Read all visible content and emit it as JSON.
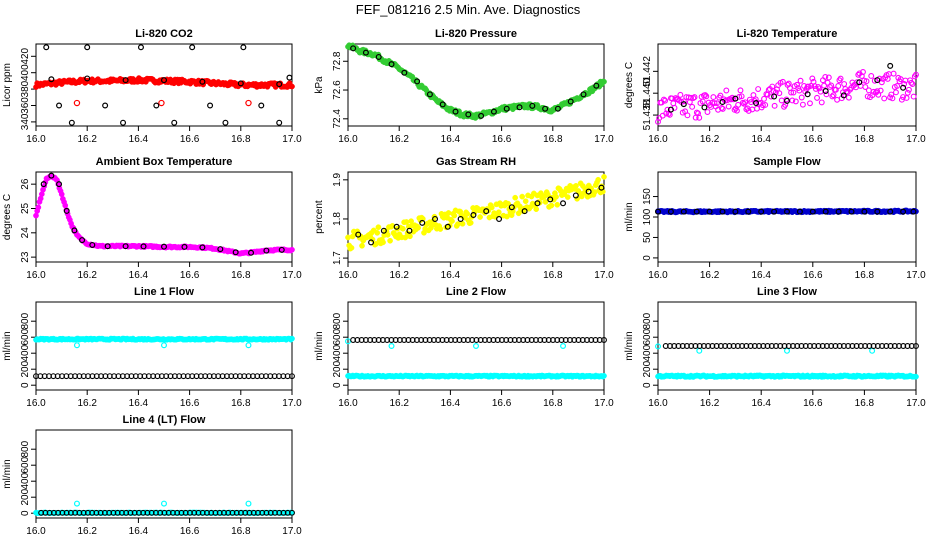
{
  "page_title": "FEF_081216  2.5 Min. Ave. Diagnostics",
  "chart_data": [
    {
      "type": "scatter",
      "title": "Li-820 CO2",
      "ylabel": "Licor ppm",
      "xlim": [
        16.0,
        17.0
      ],
      "ylim": [
        335,
        435
      ],
      "xticks": [
        16.0,
        16.2,
        16.4,
        16.6,
        16.8,
        17.0
      ],
      "yticks": [
        340,
        360,
        380,
        400,
        420
      ],
      "series": [
        {
          "name": "raw",
          "color": "#ff0000",
          "kind": "band",
          "x": [
            16.0,
            16.1,
            16.2,
            16.3,
            16.4,
            16.5,
            16.6,
            16.7,
            16.8,
            16.9,
            17.0
          ],
          "y": [
            385,
            388,
            390,
            390,
            391,
            390,
            389,
            387,
            385,
            385,
            385
          ],
          "noise": 2.5
        },
        {
          "name": "outliers",
          "color": "#ff0000",
          "kind": "points",
          "x": [
            16.16,
            16.49,
            16.83
          ],
          "y": [
            363,
            363,
            363
          ]
        },
        {
          "name": "avg",
          "color": "#000000",
          "kind": "open-points",
          "x": [
            16.06,
            16.2,
            16.35,
            16.5,
            16.65,
            16.8,
            16.95
          ],
          "y": [
            392,
            393,
            391,
            391,
            389,
            387,
            386
          ]
        },
        {
          "name": "avg-scatter",
          "color": "#000000",
          "kind": "open-points",
          "x": [
            16.04,
            16.09,
            16.14,
            16.2,
            16.27,
            16.34,
            16.41,
            16.47,
            16.54,
            16.61,
            16.68,
            16.74,
            16.81,
            16.88,
            16.95,
            16.99
          ],
          "y": [
            431,
            360,
            339,
            431,
            360,
            339,
            431,
            360,
            339,
            431,
            360,
            339,
            431,
            360,
            339,
            394
          ]
        }
      ]
    },
    {
      "type": "scatter",
      "title": "Li-820 Pressure",
      "ylabel": "kPa",
      "xlim": [
        16.0,
        17.0
      ],
      "ylim": [
        72.35,
        72.92
      ],
      "xticks": [
        16.0,
        16.2,
        16.4,
        16.6,
        16.8,
        17.0
      ],
      "yticks": [
        72.4,
        72.6,
        72.8
      ],
      "series": [
        {
          "name": "raw",
          "color": "#33cc33",
          "kind": "band",
          "x": [
            16.0,
            16.05,
            16.1,
            16.15,
            16.2,
            16.25,
            16.3,
            16.35,
            16.4,
            16.45,
            16.5,
            16.55,
            16.6,
            16.65,
            16.7,
            16.75,
            16.8,
            16.85,
            16.9,
            16.95,
            17.0
          ],
          "y": [
            72.91,
            72.87,
            72.85,
            72.8,
            72.75,
            72.68,
            72.6,
            72.52,
            72.46,
            72.43,
            72.42,
            72.44,
            72.47,
            72.48,
            72.49,
            72.48,
            72.46,
            72.5,
            72.55,
            72.6,
            72.66
          ],
          "noise": 0.015
        },
        {
          "name": "avg",
          "color": "#000000",
          "kind": "open-points",
          "x": [
            16.02,
            16.07,
            16.12,
            16.17,
            16.22,
            16.27,
            16.32,
            16.37,
            16.42,
            16.47,
            16.52,
            16.57,
            16.62,
            16.67,
            16.72,
            16.77,
            16.82,
            16.87,
            16.92,
            16.97
          ],
          "y": [
            72.89,
            72.86,
            72.83,
            72.78,
            72.72,
            72.66,
            72.57,
            72.5,
            72.45,
            72.43,
            72.42,
            72.45,
            72.47,
            72.48,
            72.49,
            72.47,
            72.47,
            72.52,
            72.57,
            72.63
          ]
        }
      ]
    },
    {
      "type": "scatter",
      "title": "Li-820 Temperature",
      "ylabel": "degrees C",
      "xlim": [
        16.0,
        17.0
      ],
      "ylim": [
        51.437,
        51.4445
      ],
      "xticks": [
        16.0,
        16.2,
        16.4,
        16.6,
        16.8,
        17.0
      ],
      "yticks": [
        51.438,
        51.44,
        51.442
      ],
      "series": [
        {
          "name": "raw",
          "color": "#ff00ff",
          "kind": "open-band",
          "x": [
            16.0,
            16.2,
            16.4,
            16.6,
            16.8,
            17.0
          ],
          "y": [
            51.4385,
            51.439,
            51.4396,
            51.4402,
            51.4408,
            51.4405
          ],
          "noise": 0.0012
        },
        {
          "name": "avg",
          "color": "#000000",
          "kind": "open-points",
          "x": [
            16.05,
            16.1,
            16.18,
            16.25,
            16.3,
            16.38,
            16.45,
            16.5,
            16.58,
            16.65,
            16.72,
            16.78,
            16.85,
            16.9,
            16.95
          ],
          "y": [
            51.4385,
            51.439,
            51.4387,
            51.4392,
            51.4395,
            51.4391,
            51.4397,
            51.4393,
            51.4399,
            51.4402,
            51.4398,
            51.441,
            51.4412,
            51.4425,
            51.4405
          ]
        }
      ]
    },
    {
      "type": "scatter",
      "title": "Ambient Box Temperature",
      "ylabel": "degrees C",
      "xlim": [
        16.0,
        17.0
      ],
      "ylim": [
        22.8,
        26.5
      ],
      "xticks": [
        16.0,
        16.2,
        16.4,
        16.6,
        16.8,
        17.0
      ],
      "yticks": [
        23.0,
        24.0,
        25.0,
        26.0
      ],
      "series": [
        {
          "name": "raw",
          "color": "#ff00ff",
          "kind": "band",
          "x": [
            16.0,
            16.02,
            16.04,
            16.06,
            16.08,
            16.1,
            16.12,
            16.14,
            16.16,
            16.18,
            16.2,
            16.25,
            16.3,
            16.4,
            16.5,
            16.6,
            16.65,
            16.7,
            16.75,
            16.8,
            16.85,
            16.9,
            16.95,
            17.0
          ],
          "y": [
            24.7,
            25.5,
            26.2,
            26.35,
            26.2,
            25.6,
            24.9,
            24.3,
            23.9,
            23.7,
            23.55,
            23.45,
            23.45,
            23.45,
            23.42,
            23.42,
            23.4,
            23.35,
            23.25,
            23.15,
            23.2,
            23.28,
            23.3,
            23.3
          ],
          "noise": 0.03
        },
        {
          "name": "avg",
          "color": "#000000",
          "kind": "open-points",
          "x": [
            16.03,
            16.06,
            16.09,
            16.12,
            16.15,
            16.18,
            16.22,
            16.28,
            16.35,
            16.42,
            16.5,
            16.58,
            16.65,
            16.72,
            16.78,
            16.84,
            16.9,
            16.96
          ],
          "y": [
            26.0,
            26.35,
            26.0,
            24.9,
            24.1,
            23.7,
            23.5,
            23.45,
            23.45,
            23.44,
            23.43,
            23.42,
            23.4,
            23.33,
            23.2,
            23.18,
            23.27,
            23.3
          ]
        }
      ]
    },
    {
      "type": "scatter",
      "title": "Gas Stream RH",
      "ylabel": "percent",
      "xlim": [
        16.0,
        17.0
      ],
      "ylim": [
        1.69,
        1.92
      ],
      "xticks": [
        16.0,
        16.2,
        16.4,
        16.6,
        16.8,
        17.0
      ],
      "yticks": [
        1.7,
        1.8,
        1.9
      ],
      "series": [
        {
          "name": "raw",
          "color": "#ffff00",
          "kind": "band",
          "x": [
            16.0,
            16.1,
            16.2,
            16.3,
            16.4,
            16.5,
            16.6,
            16.7,
            16.8,
            16.9,
            17.0
          ],
          "y": [
            1.745,
            1.755,
            1.77,
            1.785,
            1.8,
            1.81,
            1.825,
            1.84,
            1.855,
            1.87,
            1.89
          ],
          "noise": 0.022
        },
        {
          "name": "avg",
          "color": "#000000",
          "kind": "open-points",
          "x": [
            16.04,
            16.09,
            16.14,
            16.19,
            16.24,
            16.29,
            16.34,
            16.39,
            16.44,
            16.49,
            16.54,
            16.59,
            16.64,
            16.69,
            16.74,
            16.79,
            16.84,
            16.89,
            16.94,
            16.99
          ],
          "y": [
            1.76,
            1.74,
            1.77,
            1.78,
            1.77,
            1.79,
            1.8,
            1.78,
            1.8,
            1.81,
            1.82,
            1.8,
            1.83,
            1.82,
            1.84,
            1.85,
            1.84,
            1.86,
            1.87,
            1.88
          ]
        }
      ]
    },
    {
      "type": "scatter",
      "title": "Sample Flow",
      "ylabel": "ml/min",
      "xlim": [
        16.0,
        17.0
      ],
      "ylim": [
        -10,
        210
      ],
      "xticks": [
        16.0,
        16.2,
        16.4,
        16.6,
        16.8,
        17.0
      ],
      "yticks": [
        0,
        50,
        100,
        150
      ],
      "series": [
        {
          "name": "raw",
          "color": "#0000cc",
          "kind": "band",
          "x": [
            16.0,
            17.0
          ],
          "y": [
            113,
            114
          ],
          "noise": 2
        },
        {
          "name": "avg",
          "color": "#000000",
          "kind": "open-points",
          "x": [
            16.0,
            16.05,
            16.1,
            16.15,
            16.2,
            16.25,
            16.3,
            16.35,
            16.4,
            16.45,
            16.5,
            16.55,
            16.6,
            16.65,
            16.7,
            16.75,
            16.8,
            16.85,
            16.9,
            16.95,
            16.99
          ],
          "y": [
            113,
            113,
            113,
            113,
            113,
            113,
            113,
            113,
            113,
            113,
            113,
            113,
            113,
            113,
            113,
            113,
            113,
            113,
            113,
            113,
            113
          ]
        }
      ]
    },
    {
      "type": "scatter",
      "title": "Line 1 Flow",
      "ylabel": "ml/min",
      "xlim": [
        16.0,
        17.0
      ],
      "ylim": [
        -60,
        1040
      ],
      "xticks": [
        16.0,
        16.2,
        16.4,
        16.6,
        16.8,
        17.0
      ],
      "yticks": [
        0,
        200,
        400,
        600,
        800
      ],
      "series": [
        {
          "name": "cyan-high",
          "color": "#00ffff",
          "kind": "band",
          "x": [
            16.0,
            17.0
          ],
          "y": [
            575,
            575
          ],
          "noise": 8
        },
        {
          "name": "cyan-dips",
          "color": "#00ffff",
          "kind": "open-points",
          "x": [
            16.16,
            16.5,
            16.83
          ],
          "y": [
            500,
            500,
            500
          ]
        },
        {
          "name": "black-low",
          "color": "#000000",
          "kind": "dense-open",
          "x": [
            16.0,
            17.0
          ],
          "y": [
            113,
            113
          ]
        }
      ]
    },
    {
      "type": "scatter",
      "title": "Line 2 Flow",
      "ylabel": "ml/min",
      "xlim": [
        16.0,
        17.0
      ],
      "ylim": [
        -60,
        1040
      ],
      "xticks": [
        16.0,
        16.2,
        16.4,
        16.6,
        16.8,
        17.0
      ],
      "yticks": [
        0,
        200,
        400,
        600,
        800
      ],
      "series": [
        {
          "name": "cyan-low",
          "color": "#00ffff",
          "kind": "band",
          "x": [
            16.0,
            17.0
          ],
          "y": [
            113,
            113
          ],
          "noise": 8
        },
        {
          "name": "cyan-dips",
          "color": "#00ffff",
          "kind": "open-points",
          "x": [
            16.0,
            16.17,
            16.5,
            16.84
          ],
          "y": [
            550,
            490,
            490,
            490
          ]
        },
        {
          "name": "black-high",
          "color": "#000000",
          "kind": "dense-open",
          "x": [
            16.02,
            17.0
          ],
          "y": [
            565,
            565
          ]
        }
      ]
    },
    {
      "type": "scatter",
      "title": "Line 3 Flow",
      "ylabel": "ml/min",
      "xlim": [
        16.0,
        17.0
      ],
      "ylim": [
        -60,
        1040
      ],
      "xticks": [
        16.0,
        16.2,
        16.4,
        16.6,
        16.8,
        17.0
      ],
      "yticks": [
        0,
        200,
        400,
        600,
        800
      ],
      "series": [
        {
          "name": "cyan-low",
          "color": "#00ffff",
          "kind": "band",
          "x": [
            16.0,
            17.0
          ],
          "y": [
            113,
            113
          ],
          "noise": 10
        },
        {
          "name": "cyan-dips",
          "color": "#00ffff",
          "kind": "open-points",
          "x": [
            16.0,
            16.16,
            16.5,
            16.83
          ],
          "y": [
            485,
            430,
            430,
            430
          ]
        },
        {
          "name": "black-high",
          "color": "#000000",
          "kind": "dense-open",
          "x": [
            16.03,
            17.0
          ],
          "y": [
            490,
            490
          ]
        }
      ]
    },
    {
      "type": "scatter",
      "title": "Line 4 (LT) Flow",
      "ylabel": "ml/min",
      "xlim": [
        16.0,
        17.0
      ],
      "ylim": [
        -60,
        1040
      ],
      "xticks": [
        16.0,
        16.2,
        16.4,
        16.6,
        16.8,
        17.0
      ],
      "yticks": [
        0,
        200,
        400,
        600,
        800
      ],
      "series": [
        {
          "name": "cyan-low",
          "color": "#00ffff",
          "kind": "band",
          "x": [
            16.0,
            17.0
          ],
          "y": [
            5,
            5
          ],
          "noise": 4
        },
        {
          "name": "cyan-spikes",
          "color": "#00ffff",
          "kind": "open-points",
          "x": [
            16.16,
            16.5,
            16.83
          ],
          "y": [
            120,
            120,
            120
          ]
        },
        {
          "name": "black-low",
          "color": "#000000",
          "kind": "dense-open",
          "x": [
            16.02,
            17.0
          ],
          "y": [
            5,
            5
          ]
        }
      ]
    }
  ]
}
